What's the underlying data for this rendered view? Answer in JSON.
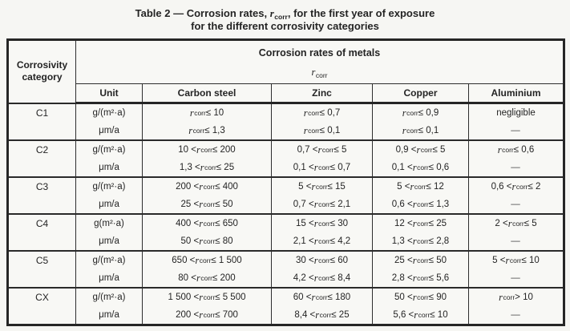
{
  "colors": {
    "page_background": "#f6f6f3",
    "table_background": "#f8f8f5",
    "border": "#2a2a2a",
    "text": "#242424"
  },
  "title": {
    "line1": "Table 2 — Corrosion rates, {r}, for the first year of exposure",
    "line2": "for the different corrosivity categories"
  },
  "table": {
    "corner_header": "Corrosivity category",
    "group_header": "Corrosion rates of metals",
    "group_subheader": "{r}",
    "columns": [
      "Unit",
      "Carbon steel",
      "Zinc",
      "Copper",
      "Aluminium"
    ],
    "rows": [
      {
        "category": "C1",
        "unit": [
          "g/(m²·a)",
          "μm/a"
        ],
        "carbon_steel": [
          "{r} ≤ 10",
          "{r} ≤ 1,3"
        ],
        "zinc": [
          "{r} ≤ 0,7",
          "{r} ≤ 0,1"
        ],
        "copper": [
          "{r} ≤ 0,9",
          "{r} ≤ 0,1"
        ],
        "aluminium": [
          "negligible",
          "—"
        ]
      },
      {
        "category": "C2",
        "unit": [
          "g/(m²·a)",
          "μm/a"
        ],
        "carbon_steel": [
          "10 < {r} ≤ 200",
          "1,3 < {r} ≤ 25"
        ],
        "zinc": [
          "0,7 < {r} ≤ 5",
          "0,1 < {r} ≤ 0,7"
        ],
        "copper": [
          "0,9 < {r} ≤ 5",
          "0,1 < {r} ≤ 0,6"
        ],
        "aluminium": [
          "{r} ≤ 0,6",
          "—"
        ]
      },
      {
        "category": "C3",
        "unit": [
          "g/(m²·a)",
          "μm/a"
        ],
        "carbon_steel": [
          "200 < {r} ≤ 400",
          "25 < {r} ≤ 50"
        ],
        "zinc": [
          "5 < {r} ≤ 15",
          "0,7 < {r} ≤ 2,1"
        ],
        "copper": [
          "5 < {r} ≤ 12",
          "0,6 < {r} ≤ 1,3"
        ],
        "aluminium": [
          "0,6 < {r} ≤ 2",
          "—"
        ]
      },
      {
        "category": "C4",
        "unit": [
          "g(m²·a)",
          "μm/a"
        ],
        "carbon_steel": [
          "400 < {r} ≤ 650",
          "50 < {r} ≤ 80"
        ],
        "zinc": [
          "15 < {r} ≤ 30",
          "2,1 < {r} ≤ 4,2"
        ],
        "copper": [
          "12 < {r} ≤ 25",
          "1,3 < {r} ≤ 2,8"
        ],
        "aluminium": [
          "2 < {r} ≤ 5",
          "—"
        ]
      },
      {
        "category": "C5",
        "unit": [
          "g/(m²·a)",
          "μm/a"
        ],
        "carbon_steel": [
          "650 < {r} ≤ 1 500",
          "80 < {r} ≤ 200"
        ],
        "zinc": [
          "30 < {r} ≤ 60",
          "4,2 < {r} ≤ 8,4"
        ],
        "copper": [
          "25 < {r} ≤ 50",
          "2,8 < {r} ≤ 5,6"
        ],
        "aluminium": [
          "5 < {r} ≤ 10",
          "—"
        ]
      },
      {
        "category": "CX",
        "unit": [
          "g/(m²·a)",
          "μm/a"
        ],
        "carbon_steel": [
          "1 500 < {r} ≤ 5 500",
          "200 < {r} ≤ 700"
        ],
        "zinc": [
          "60 < {r} ≤ 180",
          "8,4 < {r} ≤ 25"
        ],
        "copper": [
          "50 < {r} ≤ 90",
          "5,6 < {r} ≤ 10"
        ],
        "aluminium": [
          "{r} > 10",
          "—"
        ]
      }
    ]
  }
}
